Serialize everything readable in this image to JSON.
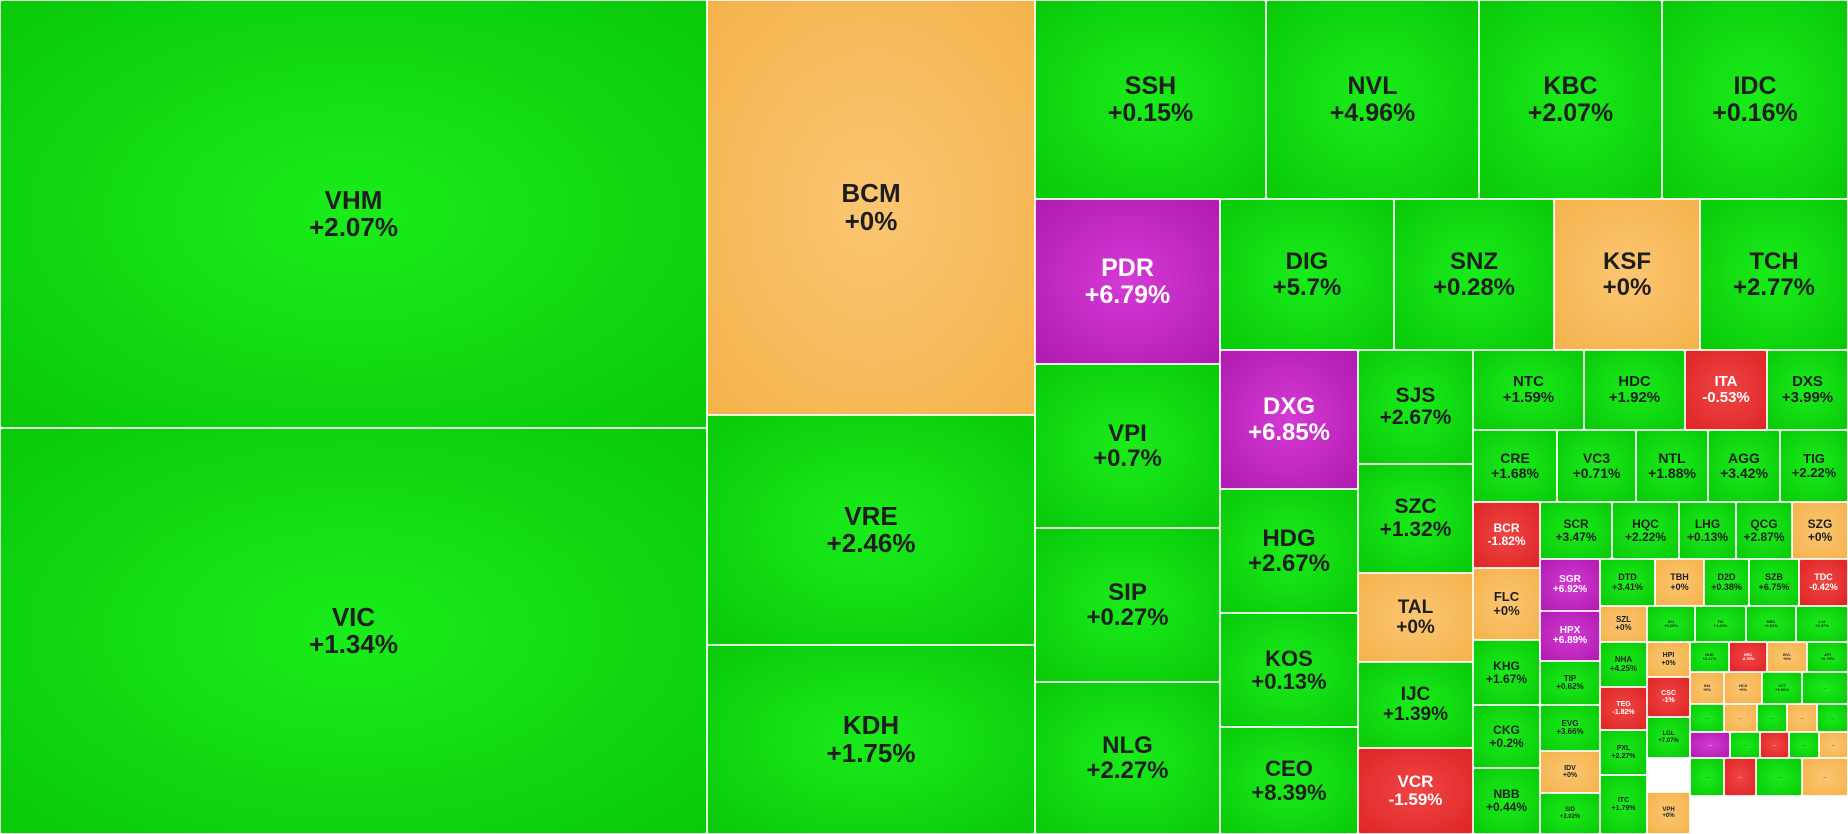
{
  "palette": {
    "up": "#0ad40a",
    "flat": "#f5b24b",
    "ceiling": "#b81cb8",
    "down": "#e02b2b"
  },
  "chart_data": {
    "type": "treemap",
    "tiles": [
      {
        "symbol": "VHM",
        "change": "+2.07%",
        "color": "up"
      },
      {
        "symbol": "VIC",
        "change": "+1.34%",
        "color": "up"
      },
      {
        "symbol": "BCM",
        "change": "+0%",
        "color": "flat"
      },
      {
        "symbol": "VRE",
        "change": "+2.46%",
        "color": "up"
      },
      {
        "symbol": "KDH",
        "change": "+1.75%",
        "color": "up"
      },
      {
        "symbol": "SSH",
        "change": "+0.15%",
        "color": "up"
      },
      {
        "symbol": "NVL",
        "change": "+4.96%",
        "color": "up"
      },
      {
        "symbol": "KBC",
        "change": "+2.07%",
        "color": "up"
      },
      {
        "symbol": "IDC",
        "change": "+0.16%",
        "color": "up"
      },
      {
        "symbol": "PDR",
        "change": "+6.79%",
        "color": "ceiling"
      },
      {
        "symbol": "DIG",
        "change": "+5.7%",
        "color": "up"
      },
      {
        "symbol": "SNZ",
        "change": "+0.28%",
        "color": "up"
      },
      {
        "symbol": "KSF",
        "change": "+0%",
        "color": "flat"
      },
      {
        "symbol": "TCH",
        "change": "+2.77%",
        "color": "up"
      },
      {
        "symbol": "VPI",
        "change": "+0.7%",
        "color": "up"
      },
      {
        "symbol": "SIP",
        "change": "+0.27%",
        "color": "up"
      },
      {
        "symbol": "NLG",
        "change": "+2.27%",
        "color": "up"
      },
      {
        "symbol": "DXG",
        "change": "+6.85%",
        "color": "ceiling"
      },
      {
        "symbol": "HDG",
        "change": "+2.67%",
        "color": "up"
      },
      {
        "symbol": "KOS",
        "change": "+0.13%",
        "color": "up"
      },
      {
        "symbol": "CEO",
        "change": "+8.39%",
        "color": "up"
      },
      {
        "symbol": "SJS",
        "change": "+2.67%",
        "color": "up"
      },
      {
        "symbol": "SZC",
        "change": "+1.32%",
        "color": "up"
      },
      {
        "symbol": "TAL",
        "change": "+0%",
        "color": "flat"
      },
      {
        "symbol": "IJC",
        "change": "+1.39%",
        "color": "up"
      },
      {
        "symbol": "VCR",
        "change": "-1.59%",
        "color": "down"
      },
      {
        "symbol": "NTC",
        "change": "+1.59%",
        "color": "up"
      },
      {
        "symbol": "HDC",
        "change": "+1.92%",
        "color": "up"
      },
      {
        "symbol": "ITA",
        "change": "-0.53%",
        "color": "down"
      },
      {
        "symbol": "DXS",
        "change": "+3.99%",
        "color": "up"
      },
      {
        "symbol": "CRE",
        "change": "+1.68%",
        "color": "up"
      },
      {
        "symbol": "VC3",
        "change": "+0.71%",
        "color": "up"
      },
      {
        "symbol": "NTL",
        "change": "+1.88%",
        "color": "up"
      },
      {
        "symbol": "AGG",
        "change": "+3.42%",
        "color": "up"
      },
      {
        "symbol": "TIG",
        "change": "+2.22%",
        "color": "up"
      },
      {
        "symbol": "BCR",
        "change": "-1.82%",
        "color": "down"
      },
      {
        "symbol": "SCR",
        "change": "+3.47%",
        "color": "up"
      },
      {
        "symbol": "HQC",
        "change": "+2.22%",
        "color": "up"
      },
      {
        "symbol": "LHG",
        "change": "+0.13%",
        "color": "up"
      },
      {
        "symbol": "QCG",
        "change": "+2.87%",
        "color": "up"
      },
      {
        "symbol": "SZG",
        "change": "+0%",
        "color": "flat"
      },
      {
        "symbol": "FLC",
        "change": "+0%",
        "color": "flat"
      },
      {
        "symbol": "SGR",
        "change": "+6.92%",
        "color": "ceiling"
      },
      {
        "symbol": "DTD",
        "change": "+3.41%",
        "color": "up"
      },
      {
        "symbol": "TBH",
        "change": "+0%",
        "color": "flat"
      },
      {
        "symbol": "D2D",
        "change": "+0.38%",
        "color": "up"
      },
      {
        "symbol": "SZB",
        "change": "+6.75%",
        "color": "up"
      },
      {
        "symbol": "TDC",
        "change": "-0.42%",
        "color": "down"
      },
      {
        "symbol": "HPX",
        "change": "+6.89%",
        "color": "ceiling"
      },
      {
        "symbol": "SZL",
        "change": "+0%",
        "color": "flat"
      },
      {
        "symbol": "KHG",
        "change": "+1.67%",
        "color": "up"
      },
      {
        "symbol": "NHA",
        "change": "+4.25%",
        "color": "up"
      },
      {
        "symbol": "HPI",
        "change": "+0%",
        "color": "flat"
      },
      {
        "symbol": "TIP",
        "change": "+0.62%",
        "color": "up"
      },
      {
        "symbol": "CSC",
        "change": "-1%",
        "color": "down"
      },
      {
        "symbol": "CKG",
        "change": "+0.2%",
        "color": "up"
      },
      {
        "symbol": "EVG",
        "change": "+3.66%",
        "color": "up"
      },
      {
        "symbol": "TEG",
        "change": "-1.82%",
        "color": "down"
      },
      {
        "symbol": "LGL",
        "change": "+7.07%",
        "color": "up"
      },
      {
        "symbol": "IDV",
        "change": "+0%",
        "color": "flat"
      },
      {
        "symbol": "PXL",
        "change": "+2.27%",
        "color": "up"
      },
      {
        "symbol": "NBB",
        "change": "+0.44%",
        "color": "up"
      },
      {
        "symbol": "SID",
        "change": "+3.02%",
        "color": "up"
      },
      {
        "symbol": "ITC",
        "change": "+1.79%",
        "color": "up"
      },
      {
        "symbol": "VPH",
        "change": "+0%",
        "color": "flat"
      }
    ],
    "minor_tiles": [
      {
        "symbol": "IDJ",
        "change": "+0.25%",
        "color": "up"
      },
      {
        "symbol": "TIX",
        "change": "+1.43%",
        "color": "up"
      },
      {
        "symbol": "NBC",
        "change": "+6.91%",
        "color": "up"
      },
      {
        "symbol": "L14",
        "change": "+2.47%",
        "color": "up"
      },
      {
        "symbol": "HUD",
        "change": "+2.17%",
        "color": "up"
      },
      {
        "symbol": "VRC",
        "change": "-6.76%",
        "color": "down"
      },
      {
        "symbol": "BVL",
        "change": "+0%",
        "color": "flat"
      },
      {
        "symbol": "API",
        "change": "+6.79%",
        "color": "up"
      },
      {
        "symbol": "IN4",
        "change": "+0%",
        "color": "flat"
      },
      {
        "symbol": "HC3",
        "change": "+0%",
        "color": "flat"
      },
      {
        "symbol": "VC7",
        "change": "+5.66%",
        "color": "up"
      },
      {
        "symbol": "...",
        "change": "",
        "color": "up"
      },
      {
        "symbol": "...",
        "change": "",
        "color": "up"
      },
      {
        "symbol": "...",
        "change": "",
        "color": "flat"
      },
      {
        "symbol": "...",
        "change": "",
        "color": "up"
      },
      {
        "symbol": "...",
        "change": "",
        "color": "flat"
      },
      {
        "symbol": "...",
        "change": "",
        "color": "up"
      },
      {
        "symbol": "...",
        "change": "",
        "color": "ceiling"
      },
      {
        "symbol": "...",
        "change": "",
        "color": "up"
      },
      {
        "symbol": "...",
        "change": "",
        "color": "down"
      },
      {
        "symbol": "...",
        "change": "",
        "color": "up"
      },
      {
        "symbol": "...",
        "change": "",
        "color": "flat"
      },
      {
        "symbol": "...",
        "change": "",
        "color": "up"
      },
      {
        "symbol": "...",
        "change": "",
        "color": "down"
      },
      {
        "symbol": "...",
        "change": "",
        "color": "up"
      },
      {
        "symbol": "...",
        "change": "",
        "color": "flat"
      }
    ]
  }
}
